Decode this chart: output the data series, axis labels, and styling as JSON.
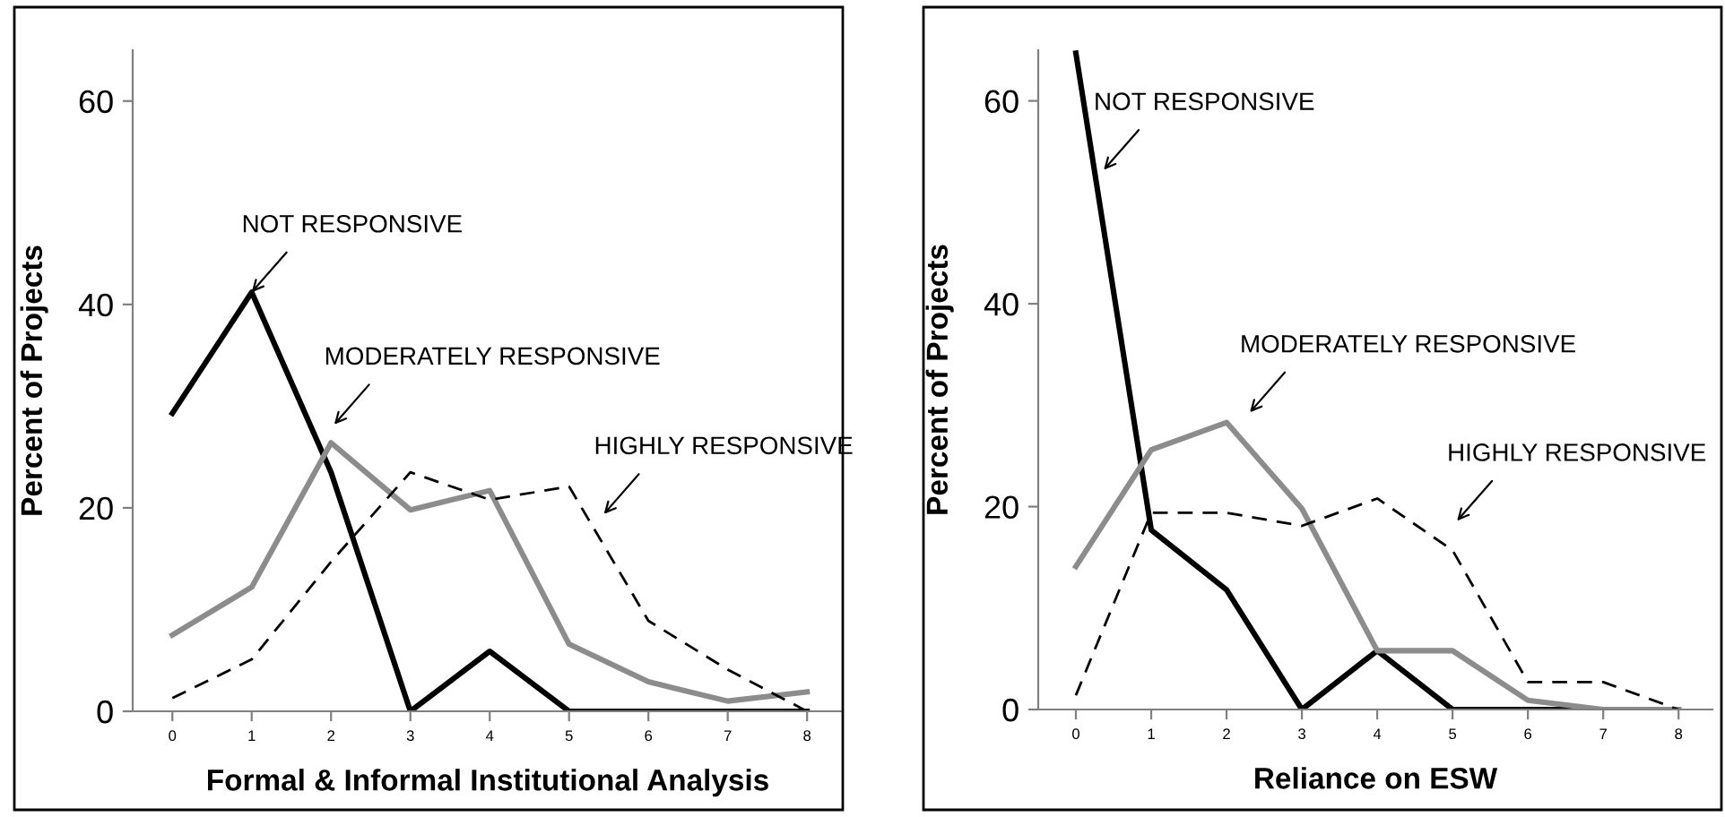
{
  "chart_data": [
    {
      "type": "line",
      "xlabel": "Formal & Informal Institutional Analysis",
      "ylabel": "Percent of Projects",
      "x": [
        0,
        1,
        2,
        3,
        4,
        5,
        6,
        7,
        8
      ],
      "xlim": [
        -0.5,
        8.45
      ],
      "xticks": [
        0,
        1,
        2,
        3,
        4,
        5,
        6,
        7,
        8
      ],
      "ylim": [
        0,
        65
      ],
      "yticks": [
        0,
        20,
        40,
        60
      ],
      "grid": false,
      "legend": false,
      "marker": "none",
      "series": [
        {
          "color": "#000000",
          "line_style": "solid",
          "values": [
            29.3,
            41.2,
            23.5,
            0,
            5.9,
            0,
            0,
            0,
            0
          ]
        },
        {
          "color": "#8c8c8c",
          "line_style": "solid",
          "values": [
            7.5,
            12.2,
            26.4,
            19.8,
            21.7,
            6.6,
            2.9,
            1.0,
            1.9
          ]
        },
        {
          "color": "#000000",
          "line_style": "dashed",
          "values": [
            1.3,
            5.1,
            14.7,
            23.5,
            20.8,
            22.1,
            8.9,
            4.1,
            0
          ]
        }
      ],
      "annotations": [
        {
          "text": "NOT RESPONSIVE",
          "x": 1,
          "y": 41.2
        },
        "MODERATELY RESPONSIVE",
        "HIGHLY RESPONSIVE"
      ]
    },
    {
      "type": "line",
      "xlabel": "Reliance on ESW",
      "ylabel": "Percent of Projects",
      "x": [
        0,
        1,
        2,
        3,
        4,
        5,
        6,
        7,
        8
      ],
      "xlim": [
        -0.5,
        8.45
      ],
      "xticks": [
        0,
        1,
        2,
        3,
        4,
        5,
        6,
        7,
        8
      ],
      "ylim": [
        0,
        65
      ],
      "yticks": [
        0,
        20,
        40,
        60
      ],
      "grid": false,
      "legend": false,
      "marker": "none",
      "series": [
        {
          "color": "#000000",
          "line_style": "solid",
          "values": [
            64.7,
            17.7,
            11.8,
            0,
            5.8,
            0,
            0,
            0,
            0
          ]
        },
        {
          "color": "#8c8c8c",
          "line_style": "solid",
          "values": [
            14.1,
            25.6,
            28.3,
            19.8,
            5.8,
            5.8,
            0.9,
            0,
            0
          ]
        },
        {
          "color": "#000000",
          "line_style": "dashed",
          "values": [
            1.4,
            19.4,
            19.4,
            18.1,
            20.8,
            15.7,
            2.7,
            2.7,
            0
          ]
        }
      ],
      "annotations": [
        "NOT RESPONSIVE",
        "MODERATELY RESPONSIVE",
        "HIGHLY RESPONSIVE"
      ]
    }
  ]
}
